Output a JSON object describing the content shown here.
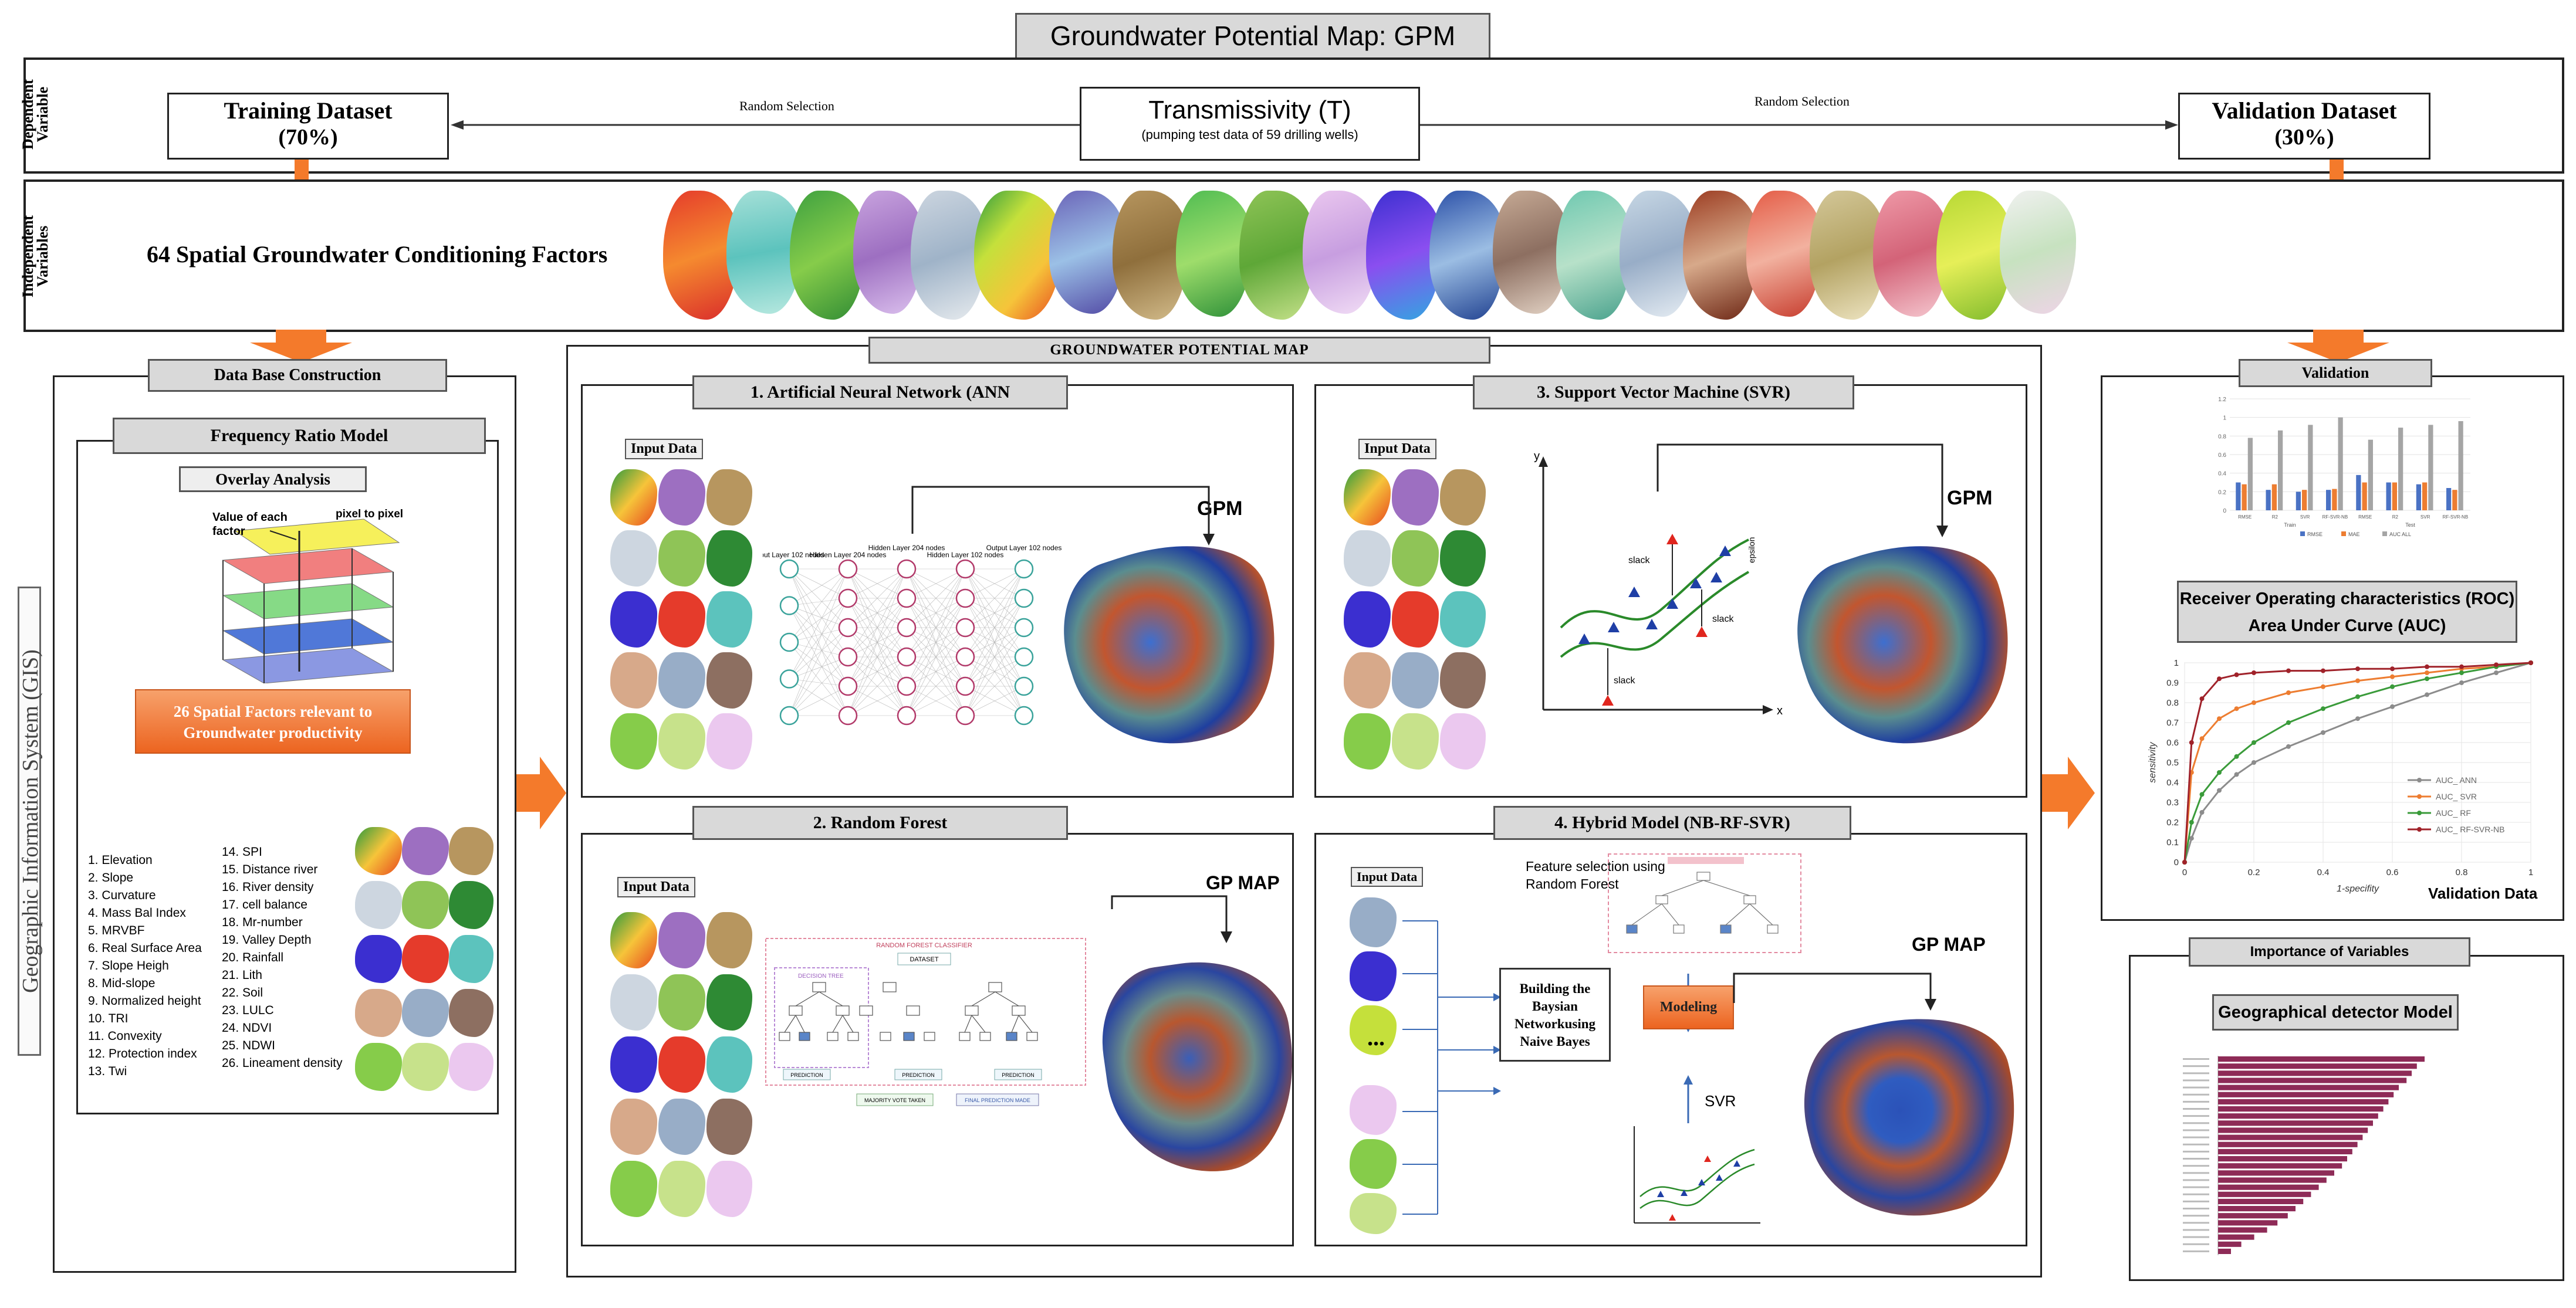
{
  "header": {
    "title": "Groundwater Potential Map: GPM"
  },
  "side_labels": {
    "dependent": "Dependent Variable",
    "independent": "Independent Variables",
    "gis": "Geographic Information System (GIS)"
  },
  "dependent_row": {
    "training_title": "Training Dataset",
    "training_pct": "(70%)",
    "validation_title": "Validation  Dataset",
    "validation_pct": "(30%)",
    "random_left": "Random Selection",
    "random_right": "Random Selection",
    "center_title": "Transmissivity (T)",
    "center_sub": "(pumping test data of  59 drilling wells)"
  },
  "independent_row": {
    "label": "64 Spatial Groundwater Conditioning Factors"
  },
  "left_panel": {
    "title": "Data Base Construction",
    "fr_title": "Frequency  Ratio Model",
    "overlay_title": "Overlay  Analysis",
    "value_label": "Value of each factor",
    "pixel_label": "pixel to pixel",
    "factors_box": "26 Spatial Factors relevant to Groundwater productivity",
    "factors_col1": [
      "1.      Elevation",
      "2.      Slope",
      "3.      Curvature",
      "4.      Mass Bal Index",
      "5.      MRVBF",
      "6.      Real Surface Area",
      "7.      Slope Heigh",
      "8.      Mid-slope",
      "9.      Normalized height",
      "10.    TRI",
      "11.    Convexity",
      "12.    Protection index",
      "13.    Twi"
    ],
    "factors_col2": [
      "14.    SPI",
      "15.    Distance river",
      "16.    River density",
      "17.    cell balance",
      "18.    Mr-number",
      "19.    Valley Depth",
      "20.    Rainfall",
      "21.    Lith",
      "22.    Soil",
      "23.    LULC",
      "24.    NDVI",
      "25.    NDWI",
      "26.    Lineament density"
    ]
  },
  "center_panel": {
    "title": "GROUNDWATER  POTENTIAL  MAP",
    "ann_title": "1.   Artificial Neural Network (ANN",
    "rf_title": "2.   Random  Forest",
    "svr_title": "3.   Support  Vector Machine (SVR)",
    "hybrid_title": "4.   Hybrid  Model  (NB-RF-SVR)",
    "input_data": "Input Data",
    "gpm": "GPM",
    "gp_map": "GP MAP",
    "ann_layers": [
      "Input Layer 102 nodes",
      "Hidden Layer 204 nodes",
      "Hidden Layer 204 nodes",
      "Hidden Layer 102 nodes",
      "Output Layer 102 nodes"
    ],
    "rf_header": "RANDOM FOREST CLASSIFIER",
    "rf_dataset": "DATASET",
    "rf_decision": "DECISION TREE",
    "rf_prediction": "PREDICTION",
    "rf_majority": "MAJORITY VOTE TAKEN",
    "rf_final": "FINAL PREDICTION MADE",
    "svr_y": "y",
    "svr_x": "x",
    "svr_slack": "slack",
    "svr_epsilon": "epsilon",
    "hyb_feature": "Feature selection using Random Forest",
    "hyb_building": "Building the Baysian Networkusing Naive Bayes",
    "hyb_modeling": "Modeling",
    "hyb_svr": "SVR",
    "hyb_dots": "..."
  },
  "right_panel": {
    "validation_title": "Validation",
    "roc_title_1": "Receiver Operating characteristics (ROC)",
    "roc_title_2": "Area Under Curve (AUC)",
    "validation_data": "Validation  Data",
    "importance_title": "Importance of Variables",
    "geo_title": "Geographical detector Model"
  },
  "chart_data": [
    {
      "type": "bar",
      "title": "",
      "categories": [
        "RMSE",
        "R2",
        "SVR",
        "RF-SVR-NB",
        "RMSE",
        "R2",
        "SVR",
        "RF-SVR-NB"
      ],
      "group_labels": [
        "Train",
        "Test"
      ],
      "series": [
        {
          "name": "RMSE",
          "color": "#4a72c4",
          "values": [
            0.3,
            0.22,
            0.2,
            0.22,
            0.38,
            0.3,
            0.28,
            0.24
          ]
        },
        {
          "name": "MAE",
          "color": "#ed7d31",
          "values": [
            0.28,
            0.28,
            0.22,
            0.23,
            0.3,
            0.3,
            0.3,
            0.22
          ]
        },
        {
          "name": "AUC ALL",
          "color": "#a5a5a5",
          "values": [
            0.78,
            0.86,
            0.92,
            1.0,
            0.76,
            0.89,
            0.92,
            0.96
          ]
        }
      ],
      "ylim": [
        0,
        1.2
      ],
      "yticks": [
        "0",
        "0.2",
        "0.4",
        "0.6",
        "0.8",
        "1",
        "1.2"
      ]
    },
    {
      "type": "line",
      "title": "",
      "xlabel": "1-specifity",
      "ylabel": "sensitivity",
      "xlim": [
        0,
        1
      ],
      "ylim": [
        0,
        1
      ],
      "xticks": [
        "0",
        "0.2",
        "0.4",
        "0.6",
        "0.8",
        "1"
      ],
      "yticks": [
        "0",
        "0.1",
        "0.2",
        "0.3",
        "0.4",
        "0.5",
        "0.6",
        "0.7",
        "0.8",
        "0.9",
        "1"
      ],
      "x": [
        0,
        0.02,
        0.05,
        0.1,
        0.15,
        0.2,
        0.3,
        0.4,
        0.5,
        0.6,
        0.7,
        0.8,
        0.9,
        1.0
      ],
      "series": [
        {
          "name": "AUC_ ANN",
          "color": "#8c8c8c",
          "values": [
            0,
            0.12,
            0.25,
            0.36,
            0.44,
            0.5,
            0.58,
            0.65,
            0.72,
            0.78,
            0.84,
            0.9,
            0.95,
            1.0
          ]
        },
        {
          "name": "AUC_ SVR",
          "color": "#ed7d31",
          "values": [
            0,
            0.45,
            0.62,
            0.72,
            0.77,
            0.8,
            0.85,
            0.88,
            0.91,
            0.93,
            0.95,
            0.97,
            0.98,
            1.0
          ]
        },
        {
          "name": "AUC_ RF",
          "color": "#3a9b3a",
          "values": [
            0,
            0.2,
            0.34,
            0.45,
            0.53,
            0.6,
            0.7,
            0.77,
            0.83,
            0.88,
            0.92,
            0.95,
            0.98,
            1.0
          ]
        },
        {
          "name": "AUC_ RF-SVR-NB",
          "color": "#a0222a",
          "values": [
            0,
            0.6,
            0.82,
            0.92,
            0.94,
            0.95,
            0.96,
            0.96,
            0.97,
            0.97,
            0.98,
            0.98,
            0.99,
            1.0
          ]
        }
      ]
    },
    {
      "type": "bar",
      "orientation": "horizontal",
      "title": "",
      "color": "#8e2b57",
      "values": [
        0.8,
        0.77,
        0.75,
        0.73,
        0.7,
        0.68,
        0.66,
        0.64,
        0.62,
        0.6,
        0.58,
        0.56,
        0.54,
        0.52,
        0.5,
        0.48,
        0.45,
        0.42,
        0.39,
        0.36,
        0.33,
        0.3,
        0.27,
        0.23,
        0.19,
        0.14,
        0.09,
        0.05
      ],
      "xlim": [
        0,
        1
      ]
    }
  ],
  "colors": {
    "orange": "#f47a2b",
    "gray_bar": "#d9d9d9",
    "nn_teal": "#3aa39b",
    "nn_crimson": "#b23a6a",
    "svr_triangle": "#1f3fa6",
    "svr_red": "#e0261e"
  }
}
